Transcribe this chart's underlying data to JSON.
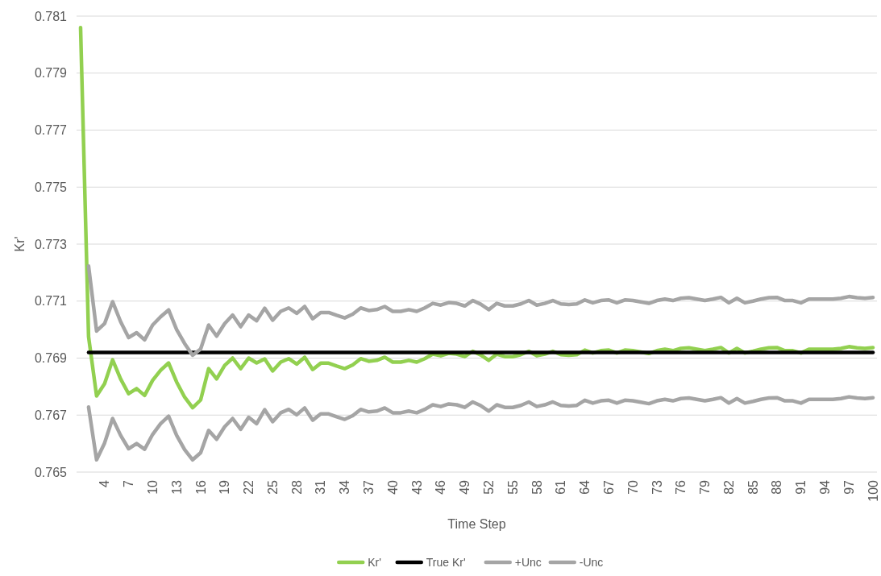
{
  "chart_data": {
    "type": "line",
    "xlabel": "Time Step",
    "ylabel": "Kr'",
    "categories": [
      null,
      null,
      null,
      "4",
      null,
      null,
      "7",
      null,
      null,
      "10",
      null,
      null,
      "13",
      null,
      null,
      "16",
      null,
      null,
      "19",
      null,
      null,
      "22",
      null,
      null,
      "25",
      null,
      null,
      "28",
      null,
      null,
      "31",
      null,
      null,
      "34",
      null,
      null,
      "37",
      null,
      null,
      "40",
      null,
      null,
      "43",
      null,
      null,
      "46",
      null,
      null,
      "49",
      null,
      null,
      "52",
      null,
      null,
      "55",
      null,
      null,
      "58",
      null,
      null,
      "61",
      null,
      null,
      "64",
      null,
      null,
      "67",
      null,
      null,
      "70",
      null,
      null,
      "73",
      null,
      null,
      "76",
      null,
      null,
      "79",
      null,
      null,
      "82",
      null,
      null,
      "85",
      null,
      null,
      "88",
      null,
      null,
      "91",
      null,
      null,
      "94",
      null,
      null,
      "97",
      null,
      null,
      "100"
    ],
    "ylim": [
      0.765,
      0.781
    ],
    "yticks": [
      0.765,
      0.767,
      0.769,
      0.771,
      0.773,
      0.775,
      0.777,
      0.779,
      0.781
    ],
    "grid": "y",
    "legend": "bottom",
    "marker": "none",
    "line_style": "solid",
    "series": [
      {
        "name": "Kr'",
        "color": "#92d050",
        "values": [
          0.7806,
          0.76975,
          0.76767,
          0.7681,
          0.76894,
          0.76827,
          0.76775,
          0.76793,
          0.76769,
          0.76822,
          0.76857,
          0.76883,
          0.76816,
          0.76763,
          0.76726,
          0.76753,
          0.76863,
          0.76827,
          0.76874,
          0.769,
          0.76863,
          0.769,
          0.76883,
          0.76897,
          0.76855,
          0.76886,
          0.76898,
          0.76879,
          0.76903,
          0.7686,
          0.76882,
          0.76882,
          0.76872,
          0.76863,
          0.76876,
          0.76898,
          0.76889,
          0.76892,
          0.76903,
          0.76886,
          0.76886,
          0.76892,
          0.76886,
          0.76898,
          0.76914,
          0.76908,
          0.76917,
          0.76914,
          0.76905,
          0.76924,
          0.76911,
          0.76892,
          0.76914,
          0.76905,
          0.76905,
          0.76912,
          0.76924,
          0.76908,
          0.76914,
          0.76924,
          0.76912,
          0.7691,
          0.76912,
          0.76928,
          0.76918,
          0.76926,
          0.76928,
          0.76918,
          0.76928,
          0.76926,
          0.76921,
          0.76916,
          0.76926,
          0.76931,
          0.76926,
          0.76934,
          0.76936,
          0.76931,
          0.76926,
          0.76931,
          0.76937,
          0.76918,
          0.76934,
          0.76918,
          0.76924,
          0.76931,
          0.76936,
          0.76937,
          0.76926,
          0.76926,
          0.76918,
          0.76931,
          0.76931,
          0.76931,
          0.76931,
          0.76934,
          0.7694,
          0.76936,
          0.76934,
          0.76937
        ]
      },
      {
        "name": "True Kr'",
        "color": "#000000",
        "values": [
          null,
          0.7692,
          0.7692,
          0.7692,
          0.7692,
          0.7692,
          0.7692,
          0.7692,
          0.7692,
          0.7692,
          0.7692,
          0.7692,
          0.7692,
          0.7692,
          0.7692,
          0.7692,
          0.7692,
          0.7692,
          0.7692,
          0.7692,
          0.7692,
          0.7692,
          0.7692,
          0.7692,
          0.7692,
          0.7692,
          0.7692,
          0.7692,
          0.7692,
          0.7692,
          0.7692,
          0.7692,
          0.7692,
          0.7692,
          0.7692,
          0.7692,
          0.7692,
          0.7692,
          0.7692,
          0.7692,
          0.7692,
          0.7692,
          0.7692,
          0.7692,
          0.7692,
          0.7692,
          0.7692,
          0.7692,
          0.7692,
          0.7692,
          0.7692,
          0.7692,
          0.7692,
          0.7692,
          0.7692,
          0.7692,
          0.7692,
          0.7692,
          0.7692,
          0.7692,
          0.7692,
          0.7692,
          0.7692,
          0.7692,
          0.7692,
          0.7692,
          0.7692,
          0.7692,
          0.7692,
          0.7692,
          0.7692,
          0.7692,
          0.7692,
          0.7692,
          0.7692,
          0.7692,
          0.7692,
          0.7692,
          0.7692,
          0.7692,
          0.7692,
          0.7692,
          0.7692,
          0.7692,
          0.7692,
          0.7692,
          0.7692,
          0.7692,
          0.7692,
          0.7692,
          0.7692,
          0.7692,
          0.7692,
          0.7692,
          0.7692,
          0.7692,
          0.7692,
          0.7692,
          0.7692,
          0.7692
        ]
      },
      {
        "name": "+Unc",
        "color": "#a5a5a5",
        "values": [
          null,
          0.77223,
          0.76995,
          0.77021,
          0.77098,
          0.77028,
          0.76972,
          0.76989,
          0.76964,
          0.77016,
          0.77045,
          0.77069,
          0.77,
          0.76951,
          0.7691,
          0.76932,
          0.77016,
          0.76977,
          0.77021,
          0.77051,
          0.7701,
          0.77051,
          0.77031,
          0.77075,
          0.77033,
          0.77064,
          0.77076,
          0.77057,
          0.77081,
          0.77038,
          0.7706,
          0.7706,
          0.7705,
          0.77041,
          0.77054,
          0.77076,
          0.77067,
          0.7707,
          0.77081,
          0.77064,
          0.77064,
          0.7707,
          0.77064,
          0.77076,
          0.77092,
          0.77086,
          0.77095,
          0.77092,
          0.77083,
          0.77102,
          0.77089,
          0.7707,
          0.77092,
          0.77083,
          0.77083,
          0.7709,
          0.77102,
          0.77086,
          0.77092,
          0.77102,
          0.7709,
          0.77088,
          0.7709,
          0.77104,
          0.77094,
          0.77102,
          0.77104,
          0.77094,
          0.77104,
          0.77102,
          0.77097,
          0.77092,
          0.77102,
          0.77107,
          0.77102,
          0.7711,
          0.77112,
          0.77107,
          0.77102,
          0.77107,
          0.77113,
          0.77094,
          0.7711,
          0.77094,
          0.771,
          0.77107,
          0.77112,
          0.77113,
          0.77102,
          0.77102,
          0.77094,
          0.77107,
          0.77107,
          0.77107,
          0.77107,
          0.7711,
          0.77116,
          0.77112,
          0.7711,
          0.77113
        ]
      },
      {
        "name": "-Unc",
        "color": "#a5a5a5",
        "values": [
          null,
          0.76728,
          0.76543,
          0.76602,
          0.76688,
          0.76629,
          0.76582,
          0.766,
          0.7658,
          0.76632,
          0.7667,
          0.76696,
          0.76629,
          0.76579,
          0.76543,
          0.76568,
          0.76646,
          0.76615,
          0.76659,
          0.76688,
          0.7665,
          0.76692,
          0.7667,
          0.76719,
          0.76677,
          0.76708,
          0.7672,
          0.76701,
          0.76725,
          0.76682,
          0.76704,
          0.76704,
          0.76694,
          0.76685,
          0.76698,
          0.7672,
          0.76711,
          0.76714,
          0.76725,
          0.76708,
          0.76708,
          0.76714,
          0.76708,
          0.7672,
          0.76736,
          0.7673,
          0.76739,
          0.76736,
          0.76727,
          0.76746,
          0.76733,
          0.76714,
          0.76736,
          0.76727,
          0.76727,
          0.76734,
          0.76746,
          0.7673,
          0.76736,
          0.76746,
          0.76734,
          0.76732,
          0.76734,
          0.76752,
          0.76742,
          0.7675,
          0.76752,
          0.76742,
          0.76752,
          0.7675,
          0.76745,
          0.7674,
          0.7675,
          0.76755,
          0.7675,
          0.76758,
          0.7676,
          0.76755,
          0.7675,
          0.76755,
          0.76761,
          0.76742,
          0.76758,
          0.76742,
          0.76748,
          0.76755,
          0.7676,
          0.76761,
          0.7675,
          0.7675,
          0.76742,
          0.76755,
          0.76755,
          0.76755,
          0.76755,
          0.76758,
          0.76764,
          0.7676,
          0.76758,
          0.76761
        ]
      }
    ]
  }
}
